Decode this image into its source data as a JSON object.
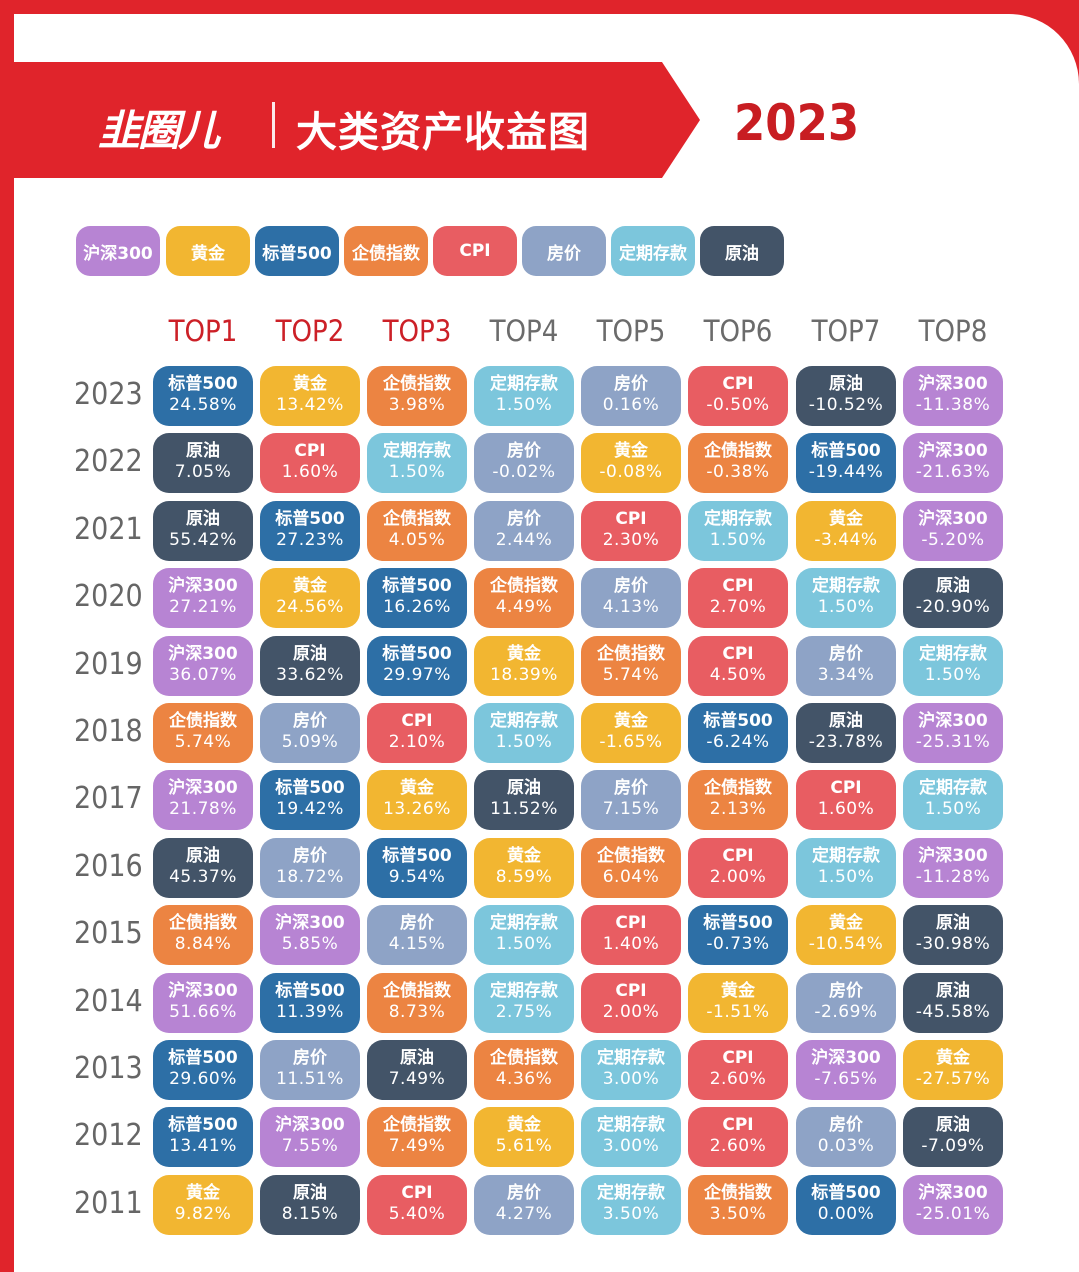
{
  "header": {
    "brand": "韭圈儿",
    "title": "大类资产收益图",
    "year": "2023"
  },
  "colors": {
    "沪深300": "#b784d3",
    "黄金": "#f2b631",
    "标普500": "#2d6fa6",
    "企债指数": "#ec8442",
    "CPI": "#e85d62",
    "房价": "#8ea3c6",
    "定期存款": "#7cc6dc",
    "原油": "#435468",
    "accent": "#e0242b",
    "top_header": "#cc2027",
    "other_header": "#6b6b6b"
  },
  "legend": [
    "沪深300",
    "黄金",
    "标普500",
    "企债指数",
    "CPI",
    "房价",
    "定期存款",
    "原油"
  ],
  "chart_data": {
    "type": "table",
    "columns": [
      "TOP1",
      "TOP2",
      "TOP3",
      "TOP4",
      "TOP5",
      "TOP6",
      "TOP7",
      "TOP8"
    ],
    "rows": [
      {
        "year": "2023",
        "cells": [
          [
            "标普500",
            "24.58%"
          ],
          [
            "黄金",
            "13.42%"
          ],
          [
            "企债指数",
            "3.98%"
          ],
          [
            "定期存款",
            "1.50%"
          ],
          [
            "房价",
            "0.16%"
          ],
          [
            "CPI",
            "-0.50%"
          ],
          [
            "原油",
            "-10.52%"
          ],
          [
            "沪深300",
            "-11.38%"
          ]
        ]
      },
      {
        "year": "2022",
        "cells": [
          [
            "原油",
            "7.05%"
          ],
          [
            "CPI",
            "1.60%"
          ],
          [
            "定期存款",
            "1.50%"
          ],
          [
            "房价",
            "-0.02%"
          ],
          [
            "黄金",
            "-0.08%"
          ],
          [
            "企债指数",
            "-0.38%"
          ],
          [
            "标普500",
            "-19.44%"
          ],
          [
            "沪深300",
            "-21.63%"
          ]
        ]
      },
      {
        "year": "2021",
        "cells": [
          [
            "原油",
            "55.42%"
          ],
          [
            "标普500",
            "27.23%"
          ],
          [
            "企债指数",
            "4.05%"
          ],
          [
            "房价",
            "2.44%"
          ],
          [
            "CPI",
            "2.30%"
          ],
          [
            "定期存款",
            "1.50%"
          ],
          [
            "黄金",
            "-3.44%"
          ],
          [
            "沪深300",
            "-5.20%"
          ]
        ]
      },
      {
        "year": "2020",
        "cells": [
          [
            "沪深300",
            "27.21%"
          ],
          [
            "黄金",
            "24.56%"
          ],
          [
            "标普500",
            "16.26%"
          ],
          [
            "企债指数",
            "4.49%"
          ],
          [
            "房价",
            "4.13%"
          ],
          [
            "CPI",
            "2.70%"
          ],
          [
            "定期存款",
            "1.50%"
          ],
          [
            "原油",
            "-20.90%"
          ]
        ]
      },
      {
        "year": "2019",
        "cells": [
          [
            "沪深300",
            "36.07%"
          ],
          [
            "原油",
            "33.62%"
          ],
          [
            "标普500",
            "29.97%"
          ],
          [
            "黄金",
            "18.39%"
          ],
          [
            "企债指数",
            "5.74%"
          ],
          [
            "CPI",
            "4.50%"
          ],
          [
            "房价",
            "3.34%"
          ],
          [
            "定期存款",
            "1.50%"
          ]
        ]
      },
      {
        "year": "2018",
        "cells": [
          [
            "企债指数",
            "5.74%"
          ],
          [
            "房价",
            "5.09%"
          ],
          [
            "CPI",
            "2.10%"
          ],
          [
            "定期存款",
            "1.50%"
          ],
          [
            "黄金",
            "-1.65%"
          ],
          [
            "标普500",
            "-6.24%"
          ],
          [
            "原油",
            "-23.78%"
          ],
          [
            "沪深300",
            "-25.31%"
          ]
        ]
      },
      {
        "year": "2017",
        "cells": [
          [
            "沪深300",
            "21.78%"
          ],
          [
            "标普500",
            "19.42%"
          ],
          [
            "黄金",
            "13.26%"
          ],
          [
            "原油",
            "11.52%"
          ],
          [
            "房价",
            "7.15%"
          ],
          [
            "企债指数",
            "2.13%"
          ],
          [
            "CPI",
            "1.60%"
          ],
          [
            "定期存款",
            "1.50%"
          ]
        ]
      },
      {
        "year": "2016",
        "cells": [
          [
            "原油",
            "45.37%"
          ],
          [
            "房价",
            "18.72%"
          ],
          [
            "标普500",
            "9.54%"
          ],
          [
            "黄金",
            "8.59%"
          ],
          [
            "企债指数",
            "6.04%"
          ],
          [
            "CPI",
            "2.00%"
          ],
          [
            "定期存款",
            "1.50%"
          ],
          [
            "沪深300",
            "-11.28%"
          ]
        ]
      },
      {
        "year": "2015",
        "cells": [
          [
            "企债指数",
            "8.84%"
          ],
          [
            "沪深300",
            "5.85%"
          ],
          [
            "房价",
            "4.15%"
          ],
          [
            "定期存款",
            "1.50%"
          ],
          [
            "CPI",
            "1.40%"
          ],
          [
            "标普500",
            "-0.73%"
          ],
          [
            "黄金",
            "-10.54%"
          ],
          [
            "原油",
            "-30.98%"
          ]
        ]
      },
      {
        "year": "2014",
        "cells": [
          [
            "沪深300",
            "51.66%"
          ],
          [
            "标普500",
            "11.39%"
          ],
          [
            "企债指数",
            "8.73%"
          ],
          [
            "定期存款",
            "2.75%"
          ],
          [
            "CPI",
            "2.00%"
          ],
          [
            "黄金",
            "-1.51%"
          ],
          [
            "房价",
            "-2.69%"
          ],
          [
            "原油",
            "-45.58%"
          ]
        ]
      },
      {
        "year": "2013",
        "cells": [
          [
            "标普500",
            "29.60%"
          ],
          [
            "房价",
            "11.51%"
          ],
          [
            "原油",
            "7.49%"
          ],
          [
            "企债指数",
            "4.36%"
          ],
          [
            "定期存款",
            "3.00%"
          ],
          [
            "CPI",
            "2.60%"
          ],
          [
            "沪深300",
            "-7.65%"
          ],
          [
            "黄金",
            "-27.57%"
          ]
        ]
      },
      {
        "year": "2012",
        "cells": [
          [
            "标普500",
            "13.41%"
          ],
          [
            "沪深300",
            "7.55%"
          ],
          [
            "企债指数",
            "7.49%"
          ],
          [
            "黄金",
            "5.61%"
          ],
          [
            "定期存款",
            "3.00%"
          ],
          [
            "CPI",
            "2.60%"
          ],
          [
            "房价",
            "0.03%"
          ],
          [
            "原油",
            "-7.09%"
          ]
        ]
      },
      {
        "year": "2011",
        "cells": [
          [
            "黄金",
            "9.82%"
          ],
          [
            "原油",
            "8.15%"
          ],
          [
            "CPI",
            "5.40%"
          ],
          [
            "房价",
            "4.27%"
          ],
          [
            "定期存款",
            "3.50%"
          ],
          [
            "企债指数",
            "3.50%"
          ],
          [
            "标普500",
            "0.00%"
          ],
          [
            "沪深300",
            "-25.01%"
          ]
        ]
      }
    ]
  }
}
